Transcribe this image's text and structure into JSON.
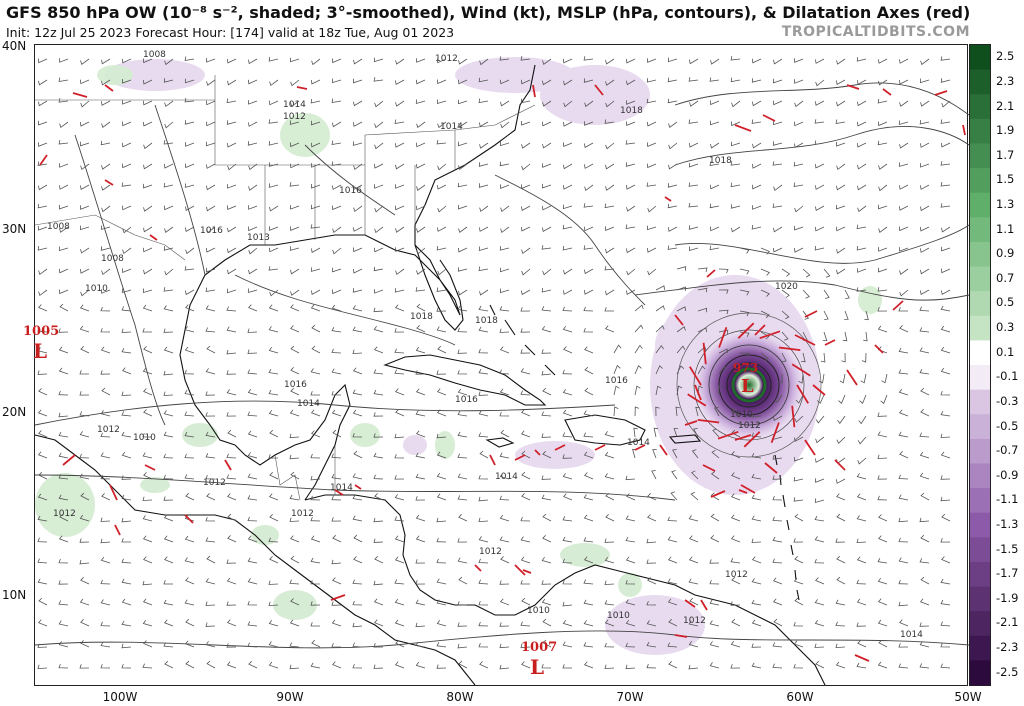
{
  "header": {
    "title": "GFS 850 hPa OW (10⁻⁸ s⁻², shaded; 3°-smoothed), Wind (kt), MSLP (hPa, contours), & Dilatation Axes (red)",
    "subtitle": "Init: 12z Jul 25 2023   Forecast Hour: [174]   valid at 18z Tue, Aug 01 2023",
    "brand": "TROPICALTIDBITS.COM"
  },
  "axes": {
    "lat_labels": [
      "40N",
      "30N",
      "20N",
      "10N"
    ],
    "lon_labels": [
      "100W",
      "90W",
      "80W",
      "70W",
      "60W",
      "50W"
    ]
  },
  "colorbar": {
    "labels": [
      "2.5",
      "2.3",
      "2.1",
      "1.9",
      "1.7",
      "1.5",
      "1.3",
      "1.1",
      "0.9",
      "0.7",
      "0.5",
      "0.3",
      "0.1",
      "-0.1",
      "-0.3",
      "-0.5",
      "-0.7",
      "-0.9",
      "-1.1",
      "-1.3",
      "-1.5",
      "-1.7",
      "-1.9",
      "-2.1",
      "-2.3",
      "-2.5"
    ],
    "positive_top": "#0f4f1e",
    "positive_mid": "#5fae6a",
    "positive_low": "#d9efd6",
    "negative_low": "#e9dcef",
    "negative_mid": "#8c5aa8",
    "negative_bottom": "#2c0a3e"
  },
  "pressure_centers": [
    {
      "type": "L",
      "value": "1005"
    },
    {
      "type": "L",
      "value": "1007"
    },
    {
      "type": "L",
      "value": "973"
    }
  ],
  "isobar_labels": [
    "1008",
    "1012",
    "1014",
    "1018",
    "1012",
    "1014",
    "1016",
    "1016",
    "1013",
    "1008",
    "1010",
    "1018",
    "1018",
    "1016",
    "1016",
    "1018",
    "1020",
    "1016",
    "1014",
    "1012",
    "1010",
    "1008",
    "1010",
    "1012",
    "1014",
    "1012",
    "1014",
    "1012",
    "1014",
    "1012",
    "1012",
    "1010",
    "1010",
    "1012",
    "1012",
    "1014"
  ],
  "colors": {
    "axes_red": "#d0202a",
    "vortex_purple": "#4a1463",
    "vortex_green": "#1f6b2a"
  }
}
